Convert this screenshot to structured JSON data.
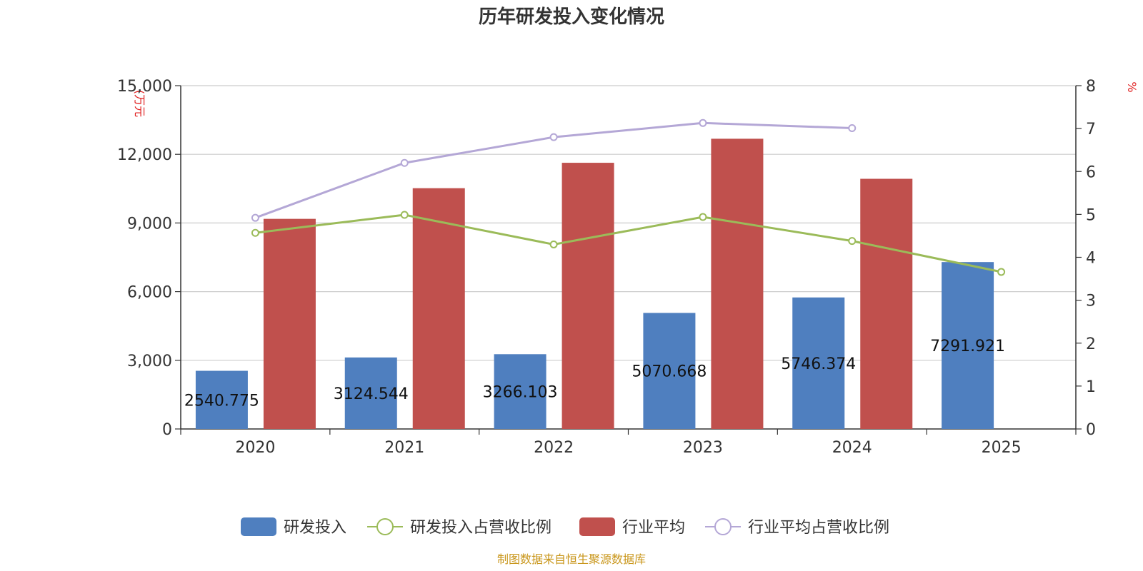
{
  "chart_data": {
    "type": "bar",
    "title": "历年研发投入变化情况",
    "categories": [
      "2020",
      "2021",
      "2022",
      "2023",
      "2024",
      "2025"
    ],
    "y_left": {
      "unit_label": "(万元",
      "min": 0,
      "max": 15000,
      "ticks": [
        "0",
        "3,000",
        "6,000",
        "9,000",
        "12,000",
        "15,000"
      ]
    },
    "y_right": {
      "unit_label": "%",
      "min": 0,
      "max": 8,
      "ticks": [
        "0",
        "1",
        "2",
        "3",
        "4",
        "5",
        "6",
        "7",
        "8"
      ]
    },
    "series": [
      {
        "name": "研发投入",
        "kind": "bar",
        "axis": "left",
        "color": "#4f7fbf",
        "values": [
          2540.775,
          3124.544,
          3266.103,
          5070.668,
          5746.374,
          7291.921
        ],
        "labels": [
          "2540.775",
          "3124.544",
          "3266.103",
          "5070.668",
          "5746.374",
          "7291.921"
        ]
      },
      {
        "name": "研发投入占营收比例",
        "kind": "line",
        "axis": "right",
        "color": "#9bbb59",
        "values": [
          4.57,
          4.99,
          4.3,
          4.94,
          4.38,
          3.66
        ]
      },
      {
        "name": "行业平均",
        "kind": "bar",
        "axis": "left",
        "color": "#c0504d",
        "values": [
          9180,
          10520,
          11630,
          12680,
          10930,
          null
        ]
      },
      {
        "name": "行业平均占营收比例",
        "kind": "line",
        "axis": "right",
        "color": "#b4a7d6",
        "values": [
          4.92,
          6.2,
          6.8,
          7.13,
          7.01,
          null
        ]
      }
    ],
    "grid": true,
    "legend_position": "bottom"
  },
  "footer": {
    "source": "制图数据来自恒生聚源数据库"
  }
}
